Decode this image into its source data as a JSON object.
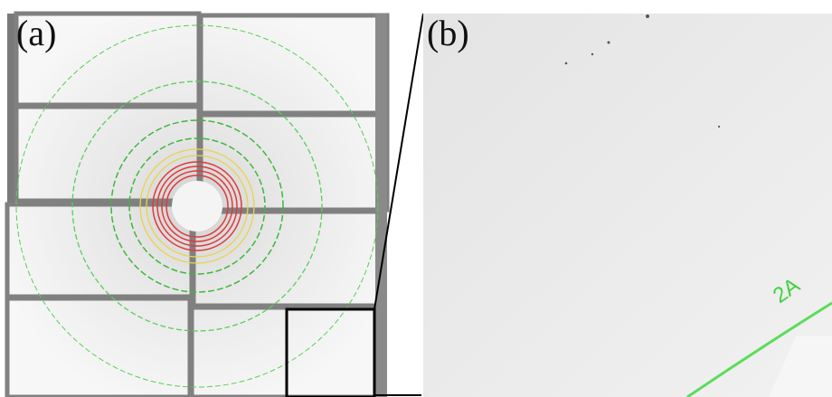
{
  "panels": [
    {
      "label": "(a)"
    },
    {
      "label": "(b)",
      "ring_label": "2A"
    }
  ]
}
